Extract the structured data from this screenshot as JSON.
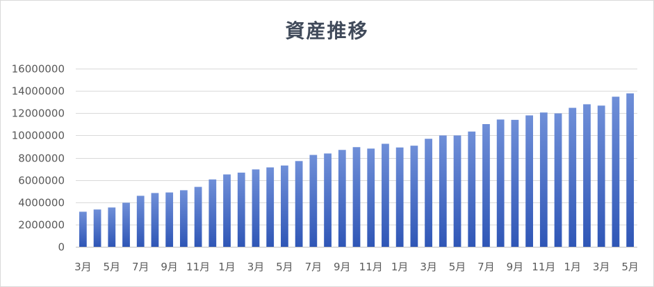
{
  "chart_data": {
    "type": "bar",
    "title": "資産推移",
    "xlabel": "",
    "ylabel": "",
    "ylim": [
      0,
      16000000
    ],
    "yticks": [
      0,
      2000000,
      4000000,
      6000000,
      8000000,
      10000000,
      12000000,
      14000000,
      16000000
    ],
    "grid": true,
    "legend": "none",
    "bar_color_top": "#6f8fd8",
    "bar_color_bottom": "#2f56b6",
    "categories": [
      "3月",
      "4月",
      "5月",
      "6月",
      "7月",
      "8月",
      "9月",
      "10月",
      "11月",
      "12月",
      "1月",
      "2月",
      "3月",
      "4月",
      "5月",
      "6月",
      "7月",
      "8月",
      "9月",
      "10月",
      "11月",
      "12月",
      "1月",
      "2月",
      "3月",
      "4月",
      "5月",
      "6月",
      "7月",
      "8月",
      "9月",
      "10月",
      "11月",
      "12月",
      "1月",
      "2月",
      "3月",
      "4月",
      "5月"
    ],
    "xtick_labels": [
      "3月",
      "",
      "5月",
      "",
      "7月",
      "",
      "9月",
      "",
      "11月",
      "",
      "1月",
      "",
      "3月",
      "",
      "5月",
      "",
      "7月",
      "",
      "9月",
      "",
      "11月",
      "",
      "1月",
      "",
      "3月",
      "",
      "5月",
      "",
      "7月",
      "",
      "9月",
      "",
      "11月",
      "",
      "1月",
      "",
      "3月",
      "",
      "5月"
    ],
    "values": [
      3150000,
      3350000,
      3530000,
      3960000,
      4580000,
      4830000,
      4880000,
      5080000,
      5380000,
      6050000,
      6500000,
      6660000,
      6950000,
      7130000,
      7300000,
      7700000,
      8250000,
      8380000,
      8700000,
      8950000,
      8820000,
      9250000,
      8920000,
      9080000,
      9700000,
      10000000,
      10000000,
      10350000,
      11020000,
      11430000,
      11400000,
      11800000,
      12060000,
      11980000,
      12480000,
      12800000,
      12680000,
      13480000,
      13780000
    ]
  }
}
